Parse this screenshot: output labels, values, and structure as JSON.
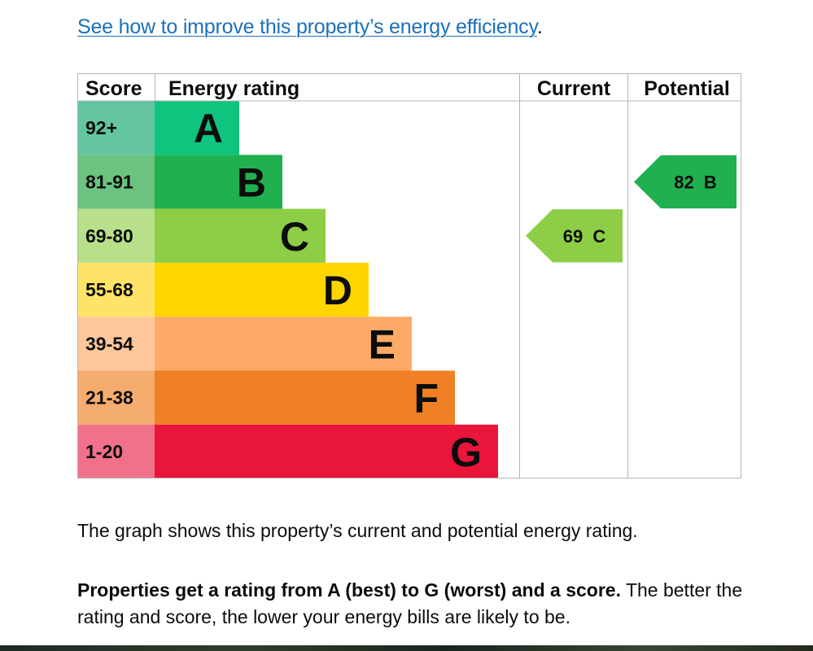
{
  "improve_link": {
    "text": "See how to improve this property’s energy efficiency",
    "trailing": "."
  },
  "chart_data": {
    "type": "table",
    "headers": [
      "Score",
      "Energy rating",
      "Current",
      "Potential"
    ],
    "bands": [
      {
        "letter": "A",
        "score_range": "92+",
        "color": "#0fc47e",
        "score_bg": "#63c6a0"
      },
      {
        "letter": "B",
        "score_range": "81-91",
        "color": "#20b050",
        "score_bg": "#6cc27f"
      },
      {
        "letter": "C",
        "score_range": "69-80",
        "color": "#8dce46",
        "score_bg": "#b8df8a"
      },
      {
        "letter": "D",
        "score_range": "55-68",
        "color": "#ffd500",
        "score_bg": "#ffe366"
      },
      {
        "letter": "E",
        "score_range": "39-54",
        "color": "#fcaa65",
        "score_bg": "#fdc79c"
      },
      {
        "letter": "F",
        "score_range": "21-38",
        "color": "#ef8023",
        "score_bg": "#f4ac6f"
      },
      {
        "letter": "G",
        "score_range": "1-20",
        "color": "#e9153b",
        "score_bg": "#f07189"
      }
    ],
    "current": {
      "score": 69,
      "band": "C",
      "color": "#8dce46"
    },
    "potential": {
      "score": 82,
      "band": "B",
      "color": "#20b050"
    }
  },
  "description": "The graph shows this property’s current and potential energy rating.",
  "summary": {
    "bold": "Properties get a rating from A (best) to G (worst) and a score.",
    "rest": " The better the rating and score, the lower your energy bills are likely to be."
  }
}
